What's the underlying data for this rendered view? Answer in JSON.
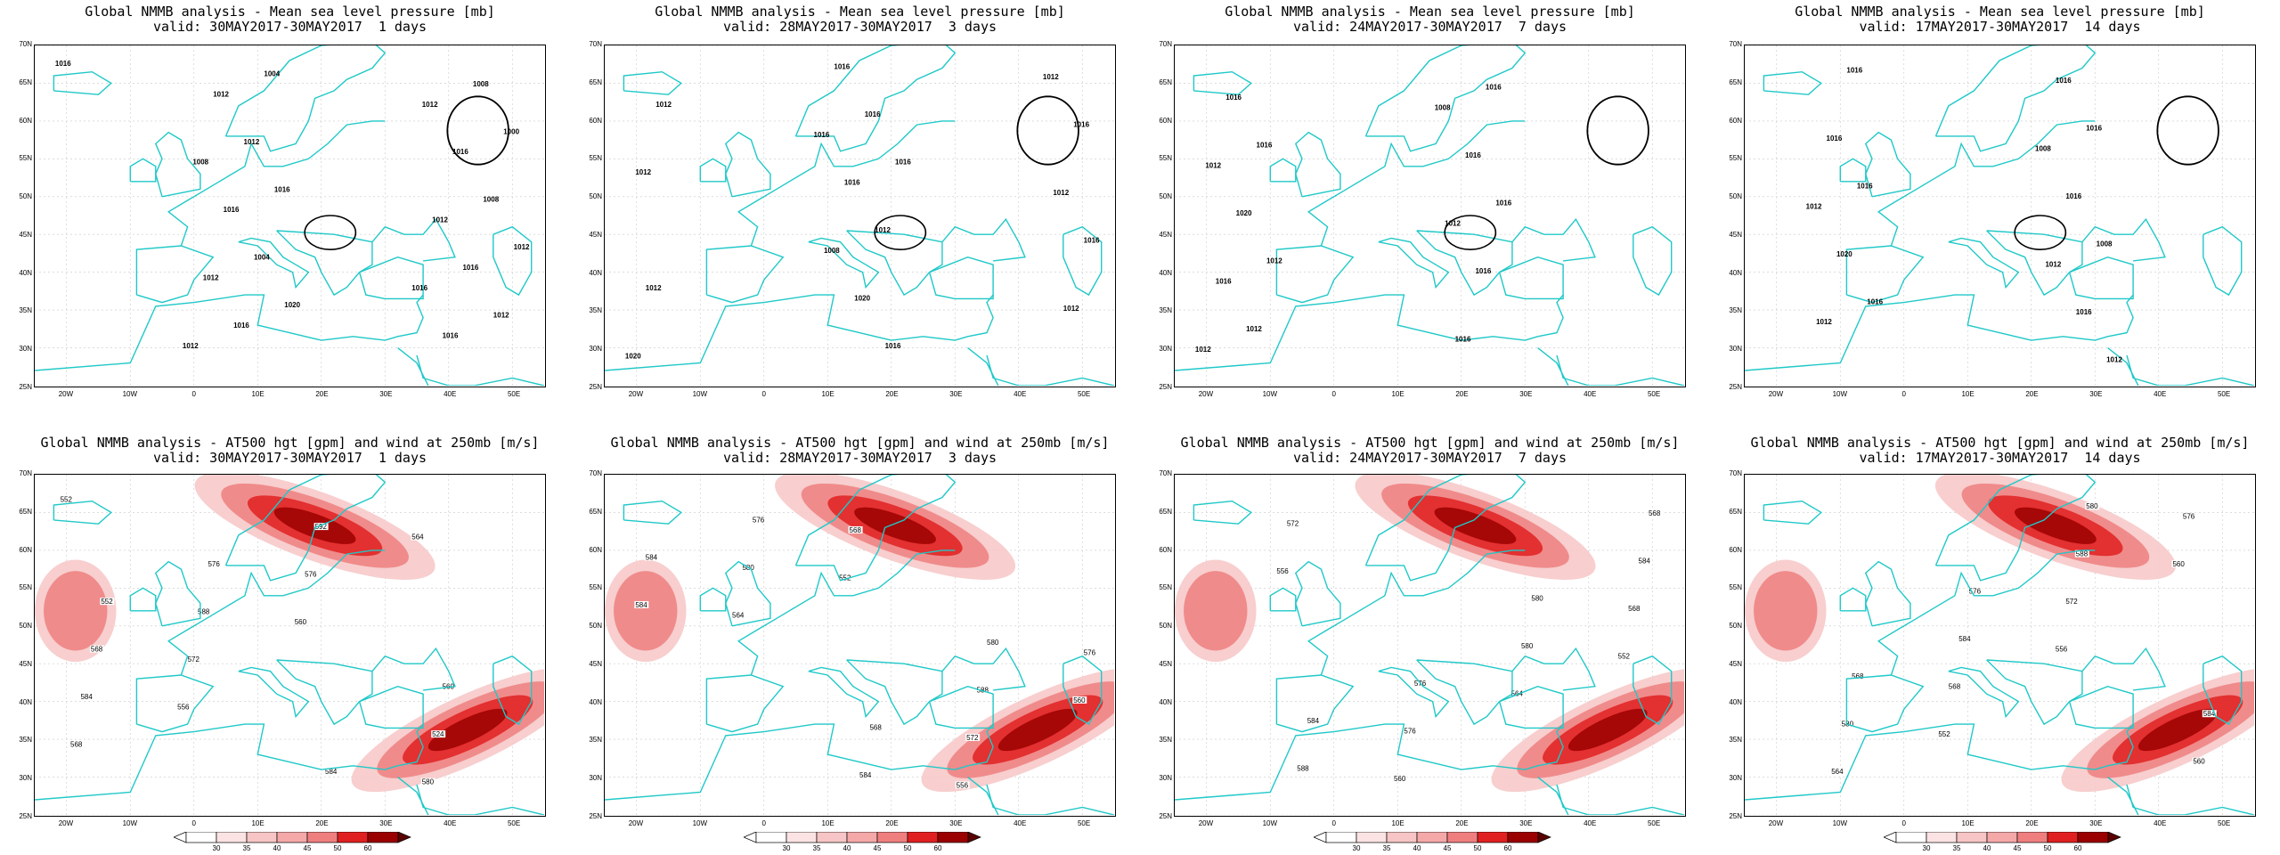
{
  "top_row": [
    {
      "title_line1": "Global NMMB analysis - Mean sea level pressure [mb]",
      "title_line2": "valid: 30MAY2017-30MAY2017  1 days"
    },
    {
      "title_line1": "Global NMMB analysis - Mean sea level pressure [mb]",
      "title_line2": "valid: 28MAY2017-30MAY2017  3 days"
    },
    {
      "title_line1": "Global NMMB analysis - Mean sea level pressure [mb]",
      "title_line2": "valid: 24MAY2017-30MAY2017  7 days"
    },
    {
      "title_line1": "Global NMMB analysis - Mean sea level pressure [mb]",
      "title_line2": "valid: 17MAY2017-30MAY2017  14 days"
    }
  ],
  "bottom_row": [
    {
      "title_line1": "Global NMMB analysis - AT500 hgt [gpm] and wind at 250mb [m/s]",
      "title_line2": "valid: 30MAY2017-30MAY2017  1 days"
    },
    {
      "title_line1": "Global NMMB analysis - AT500 hgt [gpm] and wind at 250mb [m/s]",
      "title_line2": "valid: 28MAY2017-30MAY2017  3 days"
    },
    {
      "title_line1": "Global NMMB analysis - AT500 hgt [gpm] and wind at 250mb [m/s]",
      "title_line2": "valid: 24MAY2017-30MAY2017  7 days"
    },
    {
      "title_line1": "Global NMMB analysis - AT500 hgt [gpm] and wind at 250mb [m/s]",
      "title_line2": "valid: 17MAY2017-30MAY2017  14 days"
    }
  ],
  "lat_ticks": [
    "70N",
    "65N",
    "60N",
    "55N",
    "50N",
    "45N",
    "40N",
    "35N",
    "30N",
    "25N"
  ],
  "lon_ticks": [
    "20W",
    "10W",
    "0",
    "10E",
    "20E",
    "30E",
    "40E",
    "50E"
  ],
  "colorbar_labels": [
    "30",
    "35",
    "40",
    "45",
    "50",
    "60"
  ],
  "mslp_labels": [
    [
      "1016",
      "1020",
      "1012",
      "1016",
      "1000",
      "1004",
      "1012",
      "1004",
      "1008",
      "1012",
      "1008",
      "1016",
      "1016",
      "1016",
      "1016",
      "1012",
      "1016",
      "1012",
      "1012",
      "1008",
      "1012",
      "1012",
      "1016"
    ],
    [
      "1016",
      "1012",
      "1016",
      "1012",
      "1012",
      "1012",
      "1016",
      "1020",
      "1020",
      "1016",
      "1016",
      "1016",
      "1016",
      "1012",
      "1008",
      "1012",
      "1016",
      "1012"
    ],
    [
      "1012",
      "1016",
      "1016",
      "1016",
      "1012",
      "1016",
      "1020",
      "1016",
      "1016",
      "1016",
      "1016",
      "1012",
      "1012",
      "1008",
      "1012"
    ],
    [
      "1012",
      "1016",
      "1008",
      "1016",
      "1016",
      "1016",
      "1016",
      "1020",
      "1016",
      "1016",
      "1016",
      "1012",
      "1012",
      "1012",
      "1008"
    ]
  ],
  "z500_labels": [
    [
      "552",
      "556",
      "560",
      "564",
      "568",
      "572",
      "576",
      "580",
      "584",
      "588",
      "592",
      "524",
      "568",
      "576",
      "584",
      "560",
      "552"
    ],
    [
      "552",
      "556",
      "560",
      "564",
      "568",
      "572",
      "576",
      "580",
      "584",
      "588",
      "584",
      "576",
      "568",
      "580",
      "584"
    ],
    [
      "552",
      "556",
      "560",
      "564",
      "568",
      "572",
      "576",
      "580",
      "584",
      "588",
      "576",
      "580",
      "568",
      "584"
    ],
    [
      "552",
      "556",
      "560",
      "564",
      "568",
      "572",
      "576",
      "580",
      "584",
      "588",
      "560",
      "568",
      "576",
      "580",
      "584"
    ]
  ],
  "colors": {
    "coast": "#20c8c8",
    "contour": "#000000",
    "wind_light": "#f7c5c5",
    "wind_mid": "#ef7f7f",
    "wind_dark": "#e02020",
    "wind_max": "#9b0000",
    "grid": "#c8c8c8"
  }
}
